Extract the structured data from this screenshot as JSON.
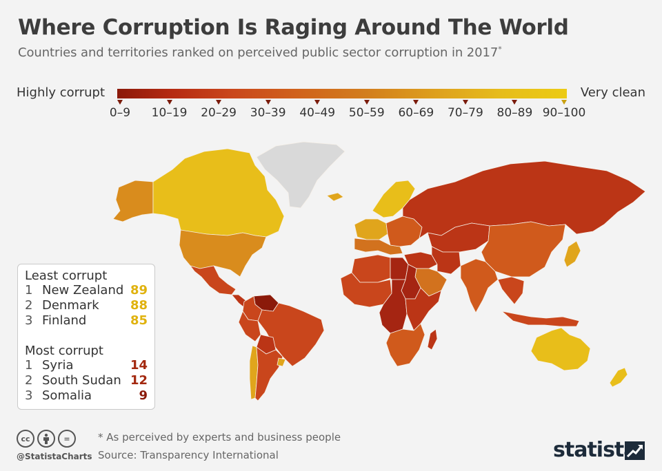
{
  "header": {
    "title": "Where Corruption Is Raging Around The World",
    "subtitle": "Countries and territories ranked on perceived public sector corruption in 2017",
    "subtitle_mark": "*"
  },
  "legend": {
    "left_label": "Highly corrupt",
    "right_label": "Very clean",
    "ranges": [
      "0–9",
      "10–19",
      "20–29",
      "30–39",
      "40–49",
      "50–59",
      "60–69",
      "70–79",
      "80–89",
      "90–100"
    ],
    "colors": [
      "#8b1a0a",
      "#a52512",
      "#bb3516",
      "#c9461c",
      "#d05a1c",
      "#d2721e",
      "#d98c1d",
      "#e0a51c",
      "#e8be1a",
      "#eccb14"
    ]
  },
  "map": {
    "regions": [
      {
        "name": "Russia",
        "color": "#bb3516"
      },
      {
        "name": "China",
        "color": "#d05a1c"
      },
      {
        "name": "Canada",
        "color": "#e8be1a"
      },
      {
        "name": "United States",
        "color": "#d98c1d"
      },
      {
        "name": "Alaska",
        "color": "#d98c1d"
      },
      {
        "name": "Greenland",
        "color": "#d9d9d9"
      },
      {
        "name": "Mexico",
        "color": "#c9461c"
      },
      {
        "name": "Central America",
        "color": "#bb3516"
      },
      {
        "name": "Venezuela",
        "color": "#8b1a0a"
      },
      {
        "name": "Colombia",
        "color": "#c9461c"
      },
      {
        "name": "Peru",
        "color": "#c9461c"
      },
      {
        "name": "Brazil",
        "color": "#c9461c"
      },
      {
        "name": "Bolivia",
        "color": "#bb3516"
      },
      {
        "name": "Chile",
        "color": "#e0a51c"
      },
      {
        "name": "Argentina",
        "color": "#c9461c"
      },
      {
        "name": "Uruguay",
        "color": "#e0a51c"
      },
      {
        "name": "Scandinavia",
        "color": "#e8be1a"
      },
      {
        "name": "Western Europe",
        "color": "#e0a51c"
      },
      {
        "name": "Southern Europe",
        "color": "#d2721e"
      },
      {
        "name": "Eastern Europe",
        "color": "#d05a1c"
      },
      {
        "name": "Iceland",
        "color": "#e0a51c"
      },
      {
        "name": "North Africa",
        "color": "#c9461c"
      },
      {
        "name": "Libya",
        "color": "#a52512"
      },
      {
        "name": "West Africa",
        "color": "#c9461c"
      },
      {
        "name": "Sudan",
        "color": "#a52512"
      },
      {
        "name": "Central Africa",
        "color": "#a52512"
      },
      {
        "name": "East Africa",
        "color": "#bb3516"
      },
      {
        "name": "Southern Africa",
        "color": "#d05a1c"
      },
      {
        "name": "Madagascar",
        "color": "#bb3516"
      },
      {
        "name": "Middle East",
        "color": "#bb3516"
      },
      {
        "name": "Saudi Arabia",
        "color": "#d2721e"
      },
      {
        "name": "Iran",
        "color": "#bb3516"
      },
      {
        "name": "Central Asia",
        "color": "#bb3516"
      },
      {
        "name": "India",
        "color": "#d05a1c"
      },
      {
        "name": "Southeast Asia",
        "color": "#c9461c"
      },
      {
        "name": "Indonesia",
        "color": "#c9461c"
      },
      {
        "name": "Japan",
        "color": "#e0a51c"
      },
      {
        "name": "Australia",
        "color": "#e8be1a"
      },
      {
        "name": "New Zealand",
        "color": "#e8be1a"
      }
    ]
  },
  "ranking": {
    "least_heading": "Least corrupt",
    "least": [
      {
        "rank": "1",
        "country": "New Zealand",
        "score": "89",
        "color": "#e0b20e"
      },
      {
        "rank": "2",
        "country": "Denmark",
        "score": "88",
        "color": "#e0b20e"
      },
      {
        "rank": "3",
        "country": "Finland",
        "score": "85",
        "color": "#e0b20e"
      }
    ],
    "most_heading": "Most corrupt",
    "most": [
      {
        "rank": "1",
        "country": "Syria",
        "score": "14",
        "color": "#a3280f"
      },
      {
        "rank": "2",
        "country": "South Sudan",
        "score": "12",
        "color": "#a3280f"
      },
      {
        "rank": "3",
        "country": "Somalia",
        "score": "9",
        "color": "#8b1a0a"
      }
    ]
  },
  "footer": {
    "license_icons": [
      "cc",
      "by",
      "="
    ],
    "handle": "@StatistaCharts",
    "note": "* As perceived by experts and business people",
    "source": "Source: Transparency International",
    "brand": "statista"
  }
}
